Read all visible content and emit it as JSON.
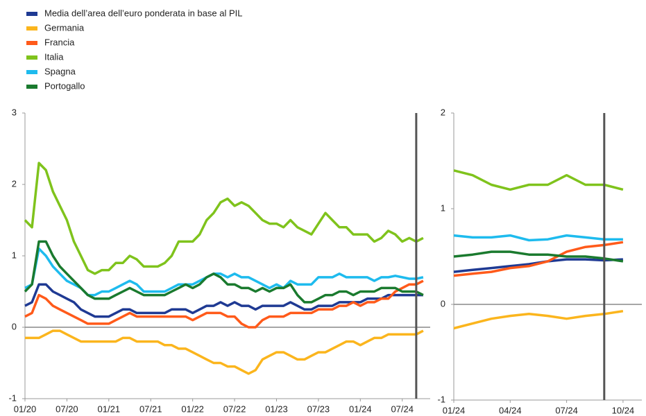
{
  "chart_data": [
    {
      "type": "line",
      "x": [
        "01/20",
        "02/20",
        "03/20",
        "04/20",
        "05/20",
        "06/20",
        "07/20",
        "08/20",
        "09/20",
        "10/20",
        "11/20",
        "12/20",
        "01/21",
        "02/21",
        "03/21",
        "04/21",
        "05/21",
        "06/21",
        "07/21",
        "08/21",
        "09/21",
        "10/21",
        "11/21",
        "12/21",
        "01/22",
        "02/22",
        "03/22",
        "04/22",
        "05/22",
        "06/22",
        "07/22",
        "08/22",
        "09/22",
        "10/22",
        "11/22",
        "12/22",
        "01/23",
        "02/23",
        "03/23",
        "04/23",
        "05/23",
        "06/23",
        "07/23",
        "08/23",
        "09/23",
        "10/23",
        "11/23",
        "12/23",
        "01/24",
        "02/24",
        "03/24",
        "04/24",
        "05/24",
        "06/24",
        "07/24",
        "08/24",
        "09/24",
        "10/24"
      ],
      "xlim": [
        "01/20",
        "11/24"
      ],
      "xticks": [
        "01/20",
        "07/20",
        "01/21",
        "07/21",
        "01/22",
        "07/22",
        "01/23",
        "07/23",
        "01/24",
        "07/24"
      ],
      "ylim": [
        -1,
        3
      ],
      "yticks": [
        -1,
        0,
        1,
        2,
        3
      ],
      "vline": "09/24",
      "zero_line": true,
      "series": [
        {
          "name": "Media dell’area dell’euro ponderata in base al PIL",
          "color": "#1f3a93",
          "values": [
            0.3,
            0.35,
            0.6,
            0.6,
            0.5,
            0.45,
            0.4,
            0.35,
            0.25,
            0.2,
            0.15,
            0.15,
            0.15,
            0.2,
            0.25,
            0.25,
            0.2,
            0.2,
            0.2,
            0.2,
            0.2,
            0.25,
            0.25,
            0.25,
            0.2,
            0.25,
            0.3,
            0.3,
            0.35,
            0.3,
            0.35,
            0.3,
            0.3,
            0.25,
            0.3,
            0.3,
            0.3,
            0.3,
            0.35,
            0.3,
            0.25,
            0.25,
            0.3,
            0.3,
            0.3,
            0.35,
            0.35,
            0.35,
            0.35,
            0.4,
            0.4,
            0.4,
            0.45,
            0.45,
            0.45,
            0.45,
            0.45,
            0.45
          ]
        },
        {
          "name": "Germania",
          "color": "#fbb51d",
          "values": [
            -0.15,
            -0.15,
            -0.15,
            -0.1,
            -0.05,
            -0.05,
            -0.1,
            -0.15,
            -0.2,
            -0.2,
            -0.2,
            -0.2,
            -0.2,
            -0.2,
            -0.15,
            -0.15,
            -0.2,
            -0.2,
            -0.2,
            -0.2,
            -0.25,
            -0.25,
            -0.3,
            -0.3,
            -0.35,
            -0.4,
            -0.45,
            -0.5,
            -0.5,
            -0.55,
            -0.55,
            -0.6,
            -0.65,
            -0.6,
            -0.45,
            -0.4,
            -0.35,
            -0.35,
            -0.4,
            -0.45,
            -0.45,
            -0.4,
            -0.35,
            -0.35,
            -0.3,
            -0.25,
            -0.2,
            -0.2,
            -0.25,
            -0.2,
            -0.15,
            -0.15,
            -0.1,
            -0.1,
            -0.1,
            -0.1,
            -0.1,
            -0.05
          ]
        },
        {
          "name": "Francia",
          "color": "#ff5a1a",
          "values": [
            0.15,
            0.2,
            0.45,
            0.4,
            0.3,
            0.25,
            0.2,
            0.15,
            0.1,
            0.05,
            0.05,
            0.05,
            0.05,
            0.1,
            0.15,
            0.2,
            0.15,
            0.15,
            0.15,
            0.15,
            0.15,
            0.15,
            0.15,
            0.15,
            0.1,
            0.15,
            0.2,
            0.2,
            0.2,
            0.15,
            0.15,
            0.05,
            0.0,
            0.0,
            0.1,
            0.15,
            0.15,
            0.15,
            0.2,
            0.2,
            0.2,
            0.2,
            0.25,
            0.25,
            0.25,
            0.3,
            0.3,
            0.35,
            0.3,
            0.35,
            0.35,
            0.4,
            0.4,
            0.5,
            0.55,
            0.6,
            0.6,
            0.65
          ]
        },
        {
          "name": "Italia",
          "color": "#7fc31c",
          "values": [
            1.5,
            1.4,
            2.3,
            2.2,
            1.9,
            1.7,
            1.5,
            1.2,
            1.0,
            0.8,
            0.75,
            0.8,
            0.8,
            0.9,
            0.9,
            1.0,
            0.95,
            0.85,
            0.85,
            0.85,
            0.9,
            1.0,
            1.2,
            1.2,
            1.2,
            1.3,
            1.5,
            1.6,
            1.75,
            1.8,
            1.7,
            1.75,
            1.7,
            1.6,
            1.5,
            1.45,
            1.45,
            1.4,
            1.5,
            1.4,
            1.35,
            1.3,
            1.45,
            1.6,
            1.5,
            1.4,
            1.4,
            1.3,
            1.3,
            1.3,
            1.2,
            1.25,
            1.35,
            1.3,
            1.2,
            1.25,
            1.2,
            1.25
          ]
        },
        {
          "name": "Spagna",
          "color": "#1ebbee",
          "values": [
            0.55,
            0.6,
            1.1,
            1.0,
            0.85,
            0.75,
            0.65,
            0.6,
            0.55,
            0.45,
            0.45,
            0.5,
            0.5,
            0.55,
            0.6,
            0.65,
            0.6,
            0.5,
            0.5,
            0.5,
            0.5,
            0.55,
            0.6,
            0.6,
            0.6,
            0.65,
            0.7,
            0.75,
            0.75,
            0.7,
            0.75,
            0.7,
            0.7,
            0.65,
            0.6,
            0.55,
            0.6,
            0.55,
            0.65,
            0.6,
            0.6,
            0.6,
            0.7,
            0.7,
            0.7,
            0.75,
            0.7,
            0.7,
            0.7,
            0.7,
            0.65,
            0.7,
            0.7,
            0.72,
            0.7,
            0.68,
            0.68,
            0.7
          ]
        },
        {
          "name": "Portogallo",
          "color": "#1a7a2e",
          "values": [
            0.5,
            0.6,
            1.2,
            1.2,
            1.0,
            0.85,
            0.75,
            0.65,
            0.55,
            0.45,
            0.4,
            0.4,
            0.4,
            0.45,
            0.5,
            0.55,
            0.5,
            0.45,
            0.45,
            0.45,
            0.45,
            0.5,
            0.55,
            0.6,
            0.55,
            0.6,
            0.7,
            0.75,
            0.7,
            0.6,
            0.6,
            0.55,
            0.55,
            0.5,
            0.55,
            0.5,
            0.55,
            0.55,
            0.6,
            0.45,
            0.35,
            0.35,
            0.4,
            0.45,
            0.45,
            0.5,
            0.5,
            0.45,
            0.5,
            0.5,
            0.5,
            0.55,
            0.55,
            0.55,
            0.5,
            0.5,
            0.5,
            0.45
          ]
        }
      ]
    },
    {
      "type": "line",
      "x": [
        "01/24",
        "02/24",
        "03/24",
        "04/24",
        "05/24",
        "06/24",
        "07/24",
        "08/24",
        "09/24",
        "10/24"
      ],
      "xlim": [
        "01/24",
        "11/24"
      ],
      "xticks": [
        "01/24",
        "04/24",
        "07/24",
        "10/24"
      ],
      "ylim": [
        -1,
        2
      ],
      "yticks": [
        -1,
        0,
        1,
        2
      ],
      "vline": "09/24",
      "zero_line": true,
      "series": [
        {
          "color": "#1f3a93",
          "values": [
            0.34,
            0.36,
            0.38,
            0.4,
            0.42,
            0.45,
            0.47,
            0.47,
            0.46,
            0.47
          ]
        },
        {
          "color": "#fbb51d",
          "values": [
            -0.25,
            -0.2,
            -0.15,
            -0.12,
            -0.1,
            -0.12,
            -0.15,
            -0.12,
            -0.1,
            -0.07
          ]
        },
        {
          "color": "#ff5a1a",
          "values": [
            0.3,
            0.32,
            0.34,
            0.38,
            0.4,
            0.45,
            0.55,
            0.6,
            0.62,
            0.65
          ]
        },
        {
          "color": "#7fc31c",
          "values": [
            1.4,
            1.35,
            1.25,
            1.2,
            1.25,
            1.25,
            1.35,
            1.25,
            1.25,
            1.2
          ]
        },
        {
          "color": "#1ebbee",
          "values": [
            0.72,
            0.7,
            0.7,
            0.72,
            0.67,
            0.68,
            0.72,
            0.7,
            0.68,
            0.68
          ]
        },
        {
          "color": "#1a7a2e",
          "values": [
            0.5,
            0.52,
            0.55,
            0.55,
            0.52,
            0.52,
            0.5,
            0.5,
            0.48,
            0.45
          ]
        }
      ]
    }
  ]
}
